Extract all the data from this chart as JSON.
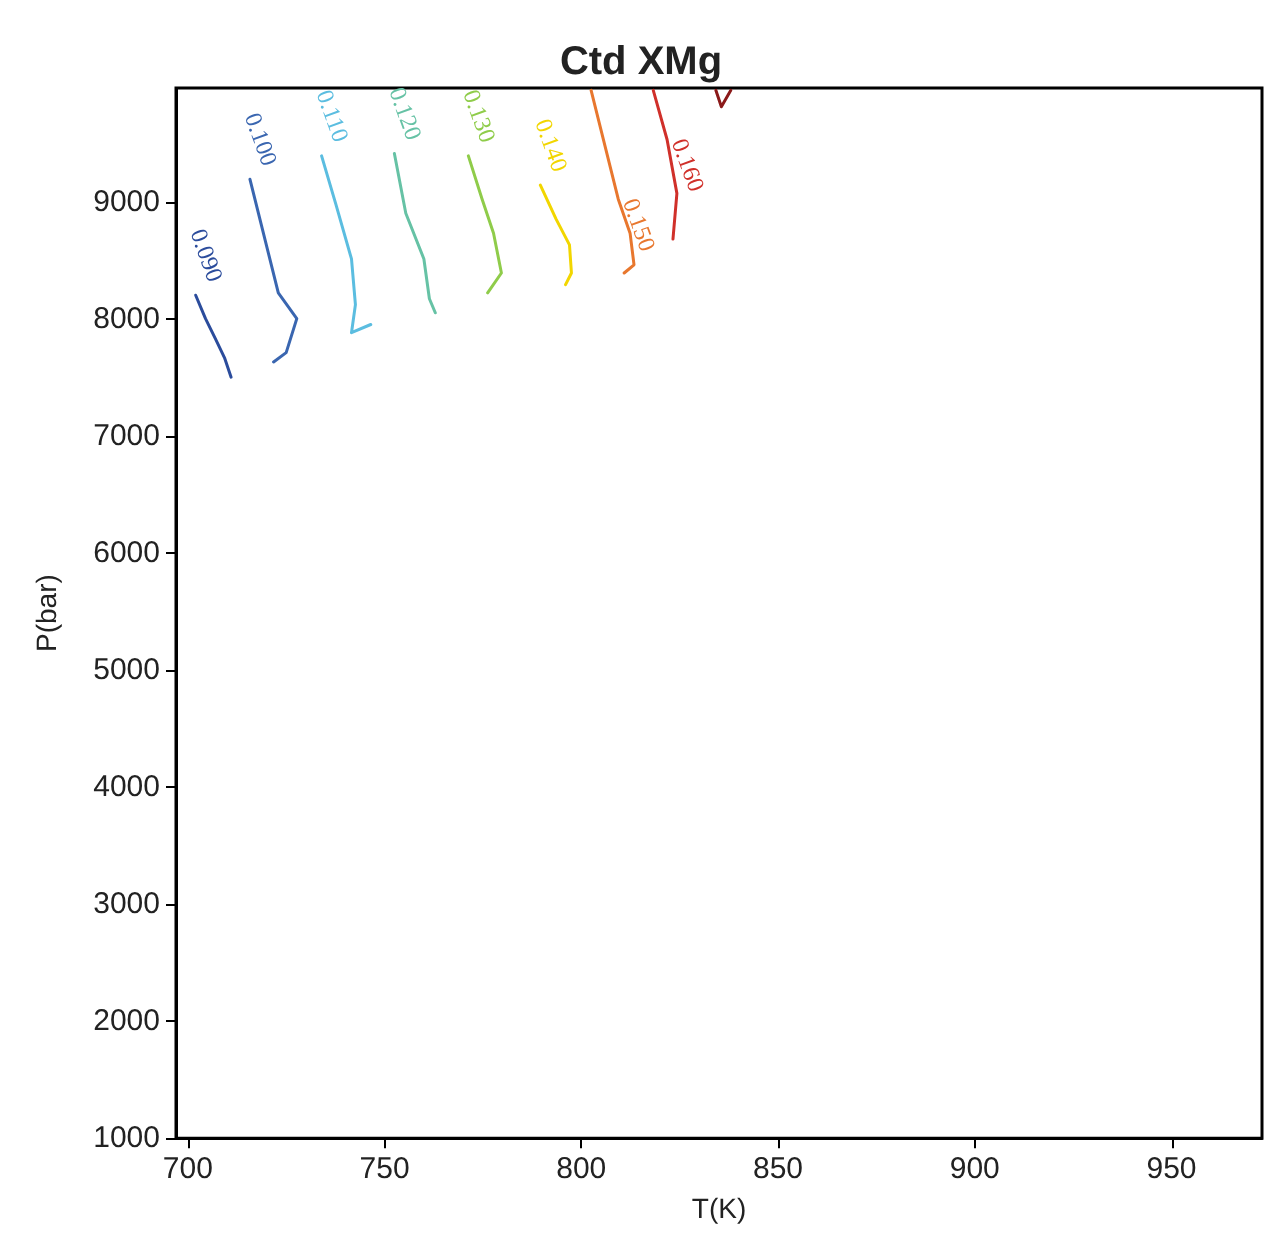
{
  "chart_data": {
    "type": "line",
    "title": "Ctd XMg",
    "xlabel": "T(K)",
    "ylabel": "P(bar)",
    "xlim": [
      697,
      973
    ],
    "xticks": [
      700,
      750,
      800,
      850,
      900,
      950
    ],
    "ylim": [
      1000,
      9970
    ],
    "yticks": [
      1000,
      2000,
      3000,
      4000,
      5000,
      6000,
      7000,
      8000,
      9000
    ],
    "grid": false,
    "legend": false,
    "marker": "none",
    "line_style": "solid",
    "series": [
      {
        "name": "0.090",
        "color": "#2b4c9c",
        "x": [
          702,
          704.5,
          707,
          709.4,
          711
        ],
        "values": [
          8200,
          8000,
          7830,
          7660,
          7500
        ]
      },
      {
        "name": "0.100",
        "color": "#3a66b0",
        "x": [
          715.8,
          723,
          727.7,
          725,
          721.8
        ],
        "values": [
          9190,
          8220,
          8000,
          7710,
          7630
        ]
      },
      {
        "name": "0.110",
        "color": "#5bbde0",
        "x": [
          734,
          737.6,
          741.6,
          742.6,
          741.6,
          746.5
        ],
        "values": [
          9390,
          8980,
          8510,
          8120,
          7880,
          7950
        ]
      },
      {
        "name": "0.120",
        "color": "#66c2a5",
        "x": [
          752.5,
          755.4,
          760,
          761.4,
          762.9
        ],
        "values": [
          9410,
          8900,
          8510,
          8170,
          8050
        ]
      },
      {
        "name": "0.130",
        "color": "#8fcc4a",
        "x": [
          771.3,
          774.8,
          777.7,
          779.7,
          776.2
        ],
        "values": [
          9390,
          9020,
          8730,
          8390,
          8220
        ]
      },
      {
        "name": "0.140",
        "color": "#f2d600",
        "x": [
          789.6,
          793.6,
          797,
          797.5,
          796
        ],
        "values": [
          9140,
          8850,
          8630,
          8390,
          8290
        ]
      },
      {
        "name": "0.150",
        "color": "#e8772e",
        "x": [
          802.5,
          809.4,
          812.4,
          813.4,
          810.9
        ],
        "values": [
          9950,
          9020,
          8730,
          8460,
          8390
        ]
      },
      {
        "name": "0.160",
        "color": "#d0302a",
        "x": [
          818.3,
          821.8,
          824.3,
          823.3
        ],
        "values": [
          9950,
          9530,
          9070,
          8680
        ]
      },
      {
        "color": "#8b1a1a",
        "x": [
          834.2,
          835.6,
          838
        ],
        "values": [
          9950,
          9810,
          9950
        ]
      }
    ]
  }
}
